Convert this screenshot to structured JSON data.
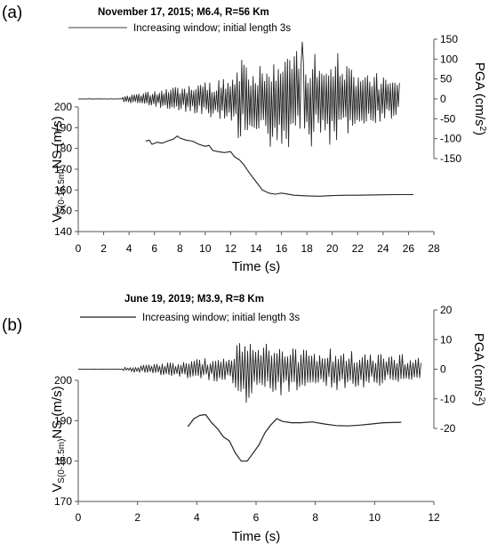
{
  "chart_data": [
    {
      "panel_label": "(a)",
      "title": "November 17, 2015; M6.4, R=56 Km",
      "legend": "Increasing window; initial length 3s",
      "xlabel": "Time (s)",
      "ylabel_left": "Vs(0-15.5m)NS (m/s)",
      "ylabel_left_sub": "S(0-15.5m)",
      "ylabel_right": "PGA (cm/s²)",
      "type": "line",
      "xlim": [
        0,
        28
      ],
      "xticks": [
        "0",
        "2",
        "4",
        "6",
        "8",
        "10",
        "12",
        "14",
        "16",
        "18",
        "20",
        "22",
        "24",
        "26",
        "28"
      ],
      "ylim_left": [
        140,
        200
      ],
      "yticks_left": [
        "140",
        "150",
        "160",
        "170",
        "180",
        "190",
        "200"
      ],
      "ylim_right": [
        -150,
        150
      ],
      "yticks_right": [
        "-150",
        "-100",
        "-50",
        "0",
        "50",
        "100",
        "150"
      ],
      "vs_series": {
        "x": [
          5.3,
          5.6,
          5.8,
          6.2,
          6.6,
          7.0,
          7.5,
          7.8,
          8.0,
          8.5,
          9.0,
          9.5,
          10.0,
          10.3,
          10.6,
          11.0,
          11.5,
          12.0,
          12.3,
          12.7,
          13.0,
          13.5,
          14.0,
          14.5,
          15.0,
          15.5,
          16.0,
          17.0,
          18.0,
          19.0,
          20.0,
          21.0,
          22.0,
          23.0,
          24.0,
          25.0,
          26.4
        ],
        "y": [
          183.5,
          184.0,
          182.0,
          183.0,
          182.5,
          183.5,
          184.5,
          186.0,
          185.0,
          184.0,
          183.5,
          182.0,
          181.0,
          181.5,
          179.0,
          178.5,
          178.0,
          178.5,
          176.0,
          174.5,
          172.5,
          168.0,
          164.0,
          160.0,
          158.5,
          158.0,
          158.5,
          157.5,
          157.2,
          157.0,
          157.3,
          157.5,
          157.5,
          157.6,
          157.7,
          157.8,
          157.8
        ]
      },
      "pga_series": {
        "type": "oscillating_waveform",
        "x_range": [
          0,
          25.3
        ],
        "peak_pga": 143,
        "peak_time": 17.6,
        "min_pga": -130,
        "strong_motion_window": [
          12.5,
          20.5
        ]
      }
    },
    {
      "panel_label": "(b)",
      "title": "June 19, 2019; M3.9, R=8 Km",
      "legend": "Increasing window; initial length 3s",
      "xlabel": "Time (s)",
      "ylabel_left": "Vs(0-15.5m)NS (m/s)",
      "ylabel_left_sub": "S(0-15.5m)",
      "ylabel_right": "PGA (cm/s²)",
      "type": "line",
      "xlim": [
        0,
        12
      ],
      "xticks": [
        "0",
        "2",
        "4",
        "6",
        "8",
        "10",
        "12"
      ],
      "ylim_left": [
        170,
        200
      ],
      "yticks_left": [
        "170",
        "180",
        "190",
        "200"
      ],
      "ylim_right": [
        -20,
        20
      ],
      "yticks_right": [
        "-20",
        "-10",
        "0",
        "10",
        "20"
      ],
      "vs_series": {
        "x": [
          3.7,
          3.9,
          4.1,
          4.3,
          4.5,
          4.7,
          4.9,
          5.1,
          5.3,
          5.5,
          5.7,
          5.9,
          6.1,
          6.3,
          6.5,
          6.7,
          6.9,
          7.2,
          7.5,
          7.9,
          8.3,
          8.7,
          9.1,
          9.5,
          9.9,
          10.3,
          10.9
        ],
        "y": [
          188.5,
          190.5,
          191.3,
          191.5,
          189.5,
          188.0,
          186.0,
          185.0,
          182.0,
          180.0,
          180.0,
          182.0,
          184.0,
          187.0,
          189.0,
          190.5,
          189.8,
          189.5,
          189.5,
          189.7,
          189.2,
          188.8,
          188.7,
          188.9,
          189.2,
          189.5,
          189.6
        ]
      },
      "pga_series": {
        "type": "oscillating_waveform",
        "x_range": [
          0,
          11.6
        ],
        "peak_pga": 12,
        "min_pga": -12,
        "strong_motion_window": [
          5.3,
          7.0
        ]
      }
    }
  ]
}
